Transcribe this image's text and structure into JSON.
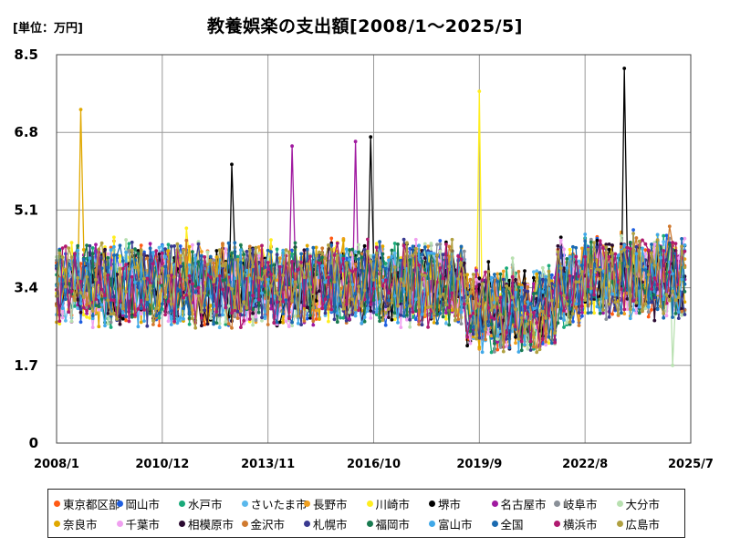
{
  "chart_data": {
    "type": "line",
    "title": "教養娯楽の支出額[2008/1～2025/5]",
    "unit_label": "[単位：万円]",
    "ylim": [
      0,
      8.5
    ],
    "y_ticks": [
      "0",
      "1.7",
      "3.4",
      "5.1",
      "6.8",
      "8.5"
    ],
    "x_ticks": [
      "2008/1",
      "2010/12",
      "2013/11",
      "2016/10",
      "2019/9",
      "2022/8",
      "2025/7"
    ],
    "x_range": [
      "2008-01",
      "2025-07"
    ],
    "grid": true,
    "legend_position": "bottom",
    "series": [
      {
        "name": "東京都区部",
        "color": "#ff5a14"
      },
      {
        "name": "岡山市",
        "color": "#1f5fe0"
      },
      {
        "name": "水戸市",
        "color": "#1aaa7a"
      },
      {
        "name": "さいたま市",
        "color": "#5ab8ec"
      },
      {
        "name": "長野市",
        "color": "#f0a020"
      },
      {
        "name": "川崎市",
        "color": "#ffee20"
      },
      {
        "name": "堺市",
        "color": "#000000"
      },
      {
        "name": "名古屋市",
        "color": "#a01aa0"
      },
      {
        "name": "岐阜市",
        "color": "#8a9098"
      },
      {
        "name": "大分市",
        "color": "#b8e0b0"
      },
      {
        "name": "奈良市",
        "color": "#e0a800"
      },
      {
        "name": "千葉市",
        "color": "#f0a0f0"
      },
      {
        "name": "相模原市",
        "color": "#2a0a30"
      },
      {
        "name": "金沢市",
        "color": "#d07a30"
      },
      {
        "name": "札幌市",
        "color": "#3a3a90"
      },
      {
        "name": "福岡市",
        "color": "#187a50"
      },
      {
        "name": "富山市",
        "color": "#40a8e8"
      },
      {
        "name": "全国",
        "color": "#1a6ab0"
      },
      {
        "name": "横浜市",
        "color": "#b01a70"
      },
      {
        "name": "広島市",
        "color": "#b0a040"
      }
    ],
    "notable_points": [
      {
        "series": "奈良市",
        "x": "2008-09",
        "y": 7.3
      },
      {
        "series": "名古屋市",
        "x": "2014-07",
        "y": 6.5
      },
      {
        "series": "名古屋市",
        "x": "2016-04",
        "y": 6.6
      },
      {
        "series": "堺市",
        "x": "2016-09",
        "y": 6.7
      },
      {
        "series": "川崎市",
        "x": "2019-09",
        "y": 7.7
      },
      {
        "series": "堺市",
        "x": "2023-09",
        "y": 8.2
      },
      {
        "series": "堺市",
        "x": "2012-11",
        "y": 6.1
      },
      {
        "series": "大分市",
        "x": "2025-01",
        "y": 1.7
      }
    ]
  }
}
